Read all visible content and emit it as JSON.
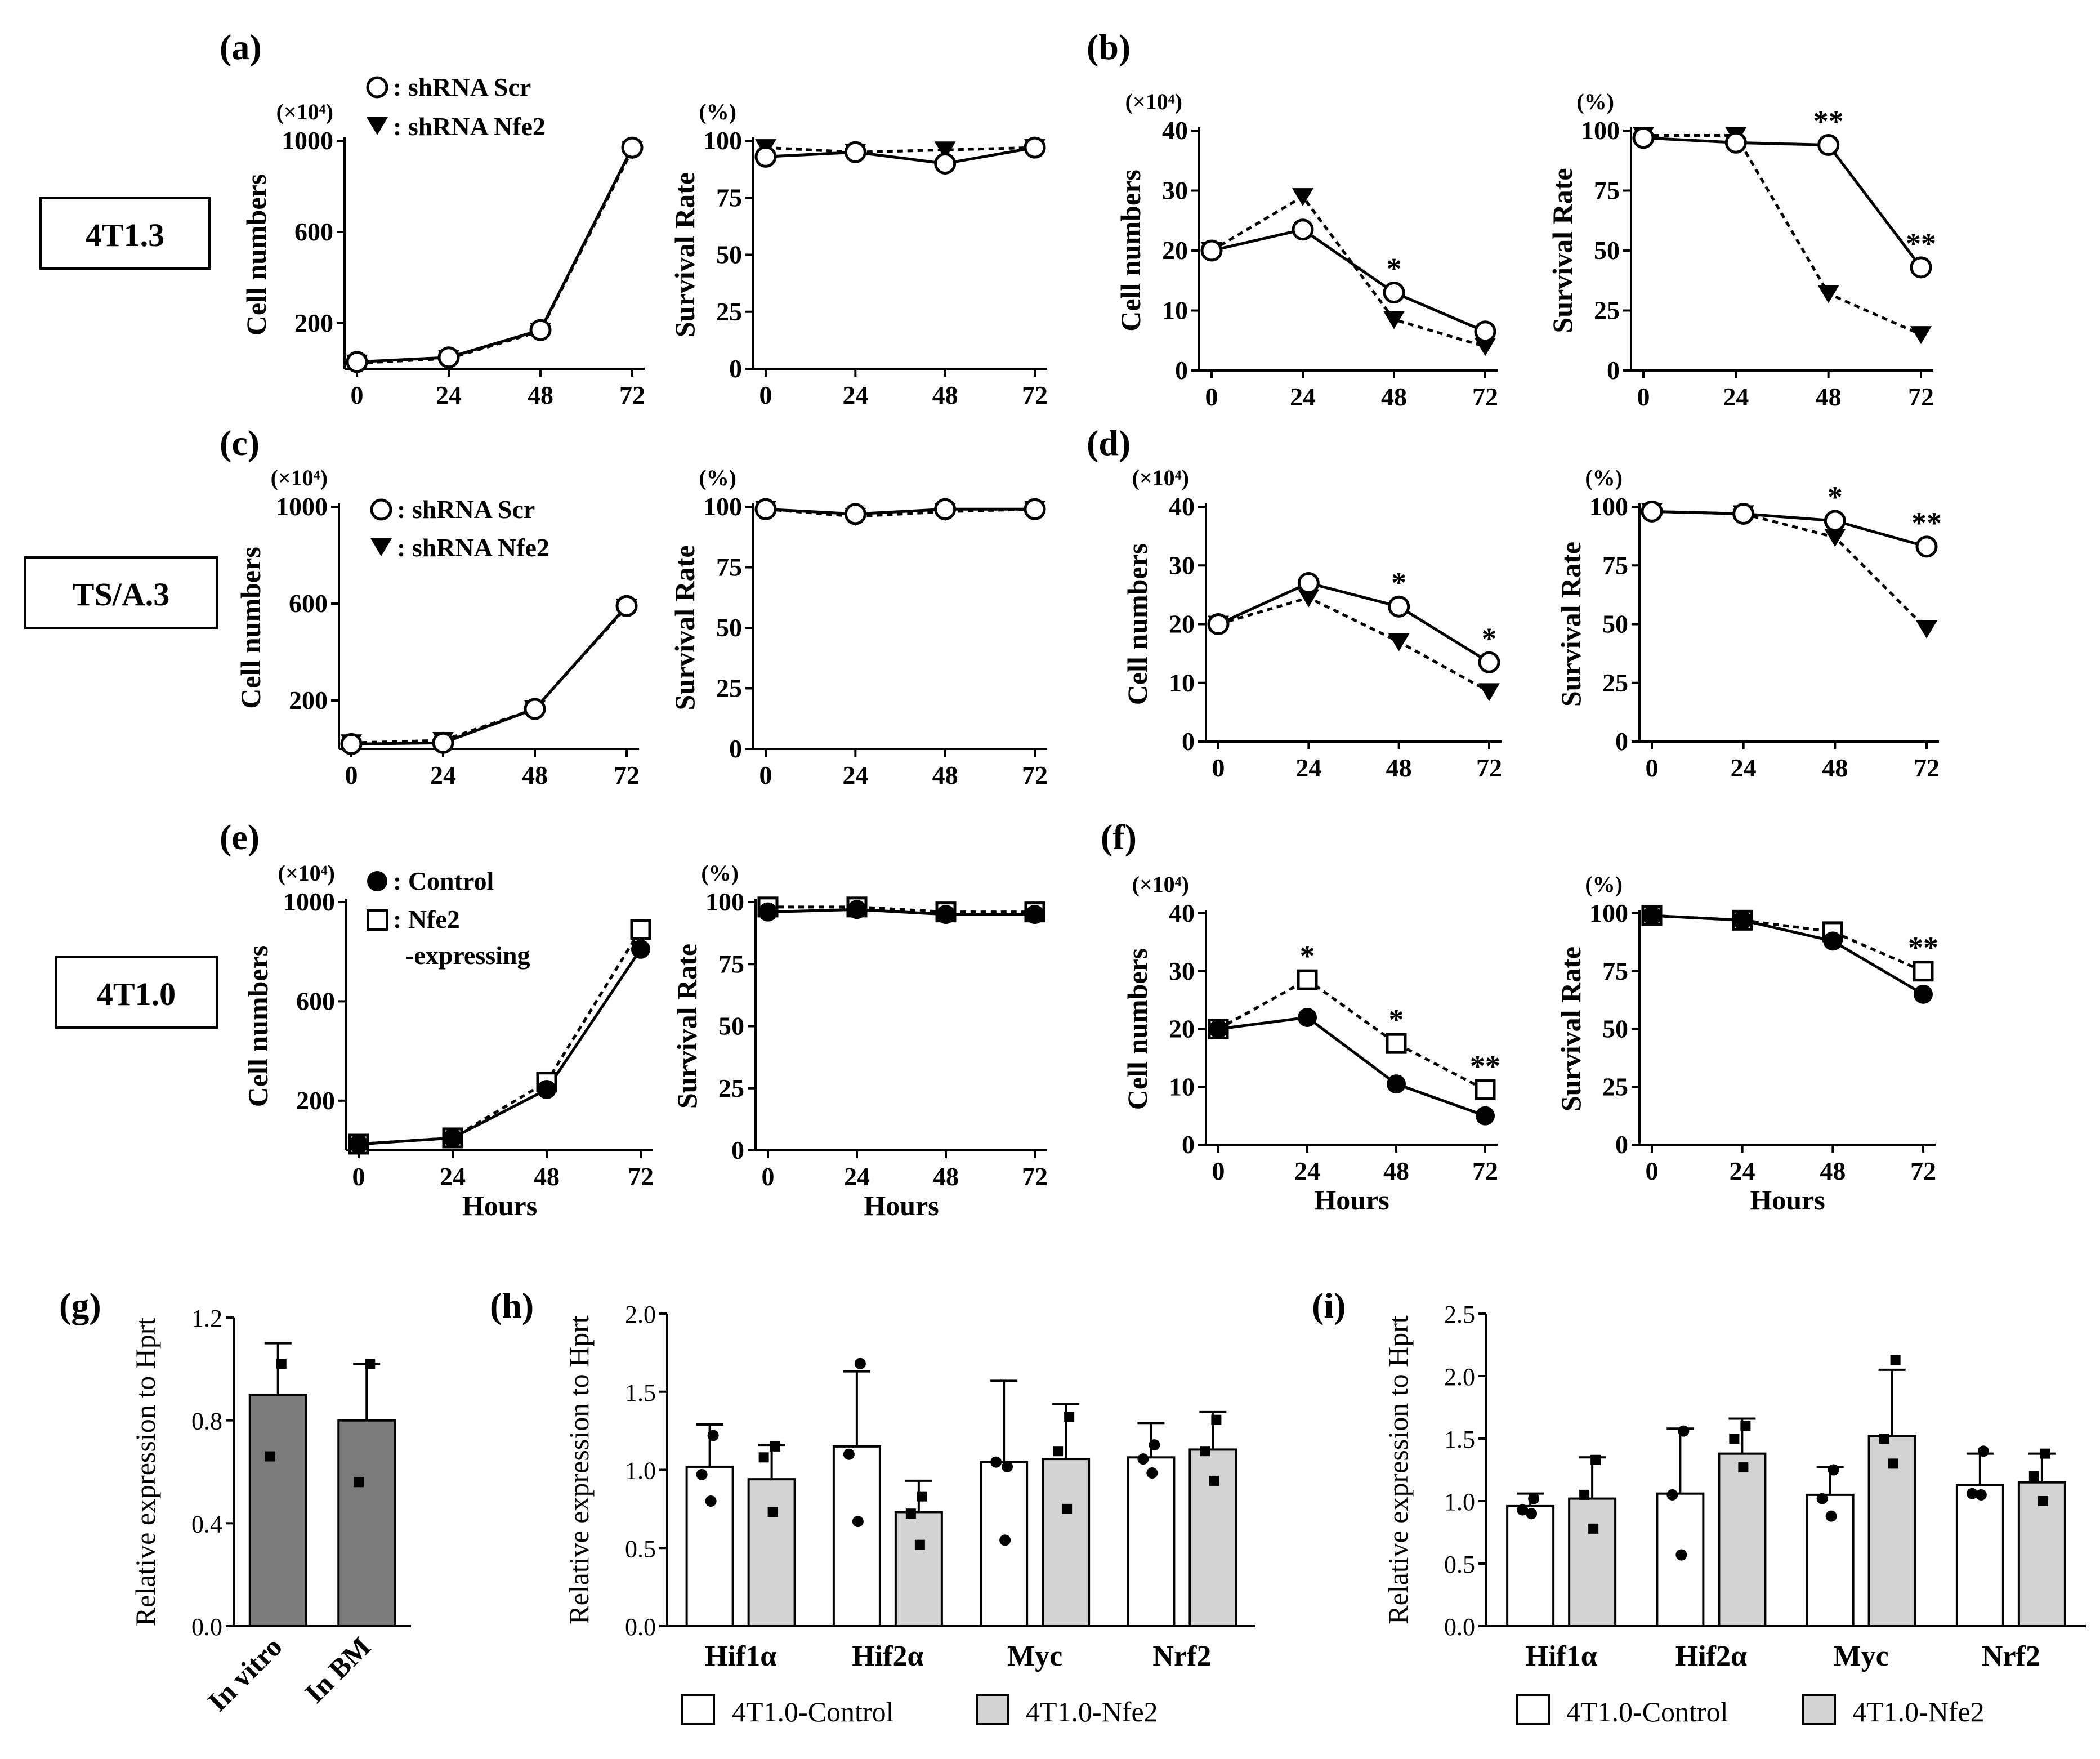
{
  "figure": {
    "panel_letters": [
      "(a)",
      "(b)",
      "(c)",
      "(d)",
      "(e)",
      "(f)",
      "(g)",
      "(h)",
      "(i)"
    ],
    "row_labels": [
      "4T1.3",
      "TS/A.3",
      "4T1.0"
    ],
    "legend_knockdown": {
      "scr": ": shRNA Scr",
      "nfe2": ": shRNA Nfe2"
    },
    "legend_expression": {
      "control": ": Control",
      "nfe2_line1": ": Nfe2",
      "nfe2_line2": "-expressing"
    },
    "legend_bars": {
      "control": "4T1.0-Control",
      "nfe2": "4T1.0-Nfe2"
    },
    "colors": {
      "bar_control": "#ffffff",
      "bar_nfe2": "#d3d3d3",
      "bar_single": "#7b7b7b",
      "ink": "#000000"
    }
  },
  "chart_data": [
    {
      "panel": "(a)",
      "type": "line",
      "xlabel": "",
      "ylabel": "Cell numbers",
      "unit": "(×10⁴)",
      "xticks": [
        0,
        24,
        48,
        72
      ],
      "yticks": [
        200,
        600,
        1000
      ],
      "ylim": [
        0,
        1000
      ],
      "series": [
        {
          "name": "shRNA Scr",
          "marker": "open-circle",
          "line": "solid",
          "x": [
            0,
            24,
            48,
            72
          ],
          "y": [
            30,
            50,
            170,
            970
          ]
        },
        {
          "name": "shRNA Nfe2",
          "marker": "filled-triangle-down",
          "line": "dotted",
          "x": [
            0,
            24,
            48,
            72
          ],
          "y": [
            25,
            45,
            165,
            960
          ]
        }
      ]
    },
    {
      "panel": "(a)",
      "type": "line",
      "xlabel": "",
      "ylabel": "Survival Rate",
      "unit": "(%)",
      "xticks": [
        0,
        24,
        48,
        72
      ],
      "yticks": [
        0,
        25,
        50,
        75,
        100
      ],
      "ylim": [
        0,
        100
      ],
      "series": [
        {
          "name": "shRNA Scr",
          "marker": "open-circle",
          "line": "solid",
          "x": [
            0,
            24,
            48,
            72
          ],
          "y": [
            93,
            95,
            90,
            97
          ]
        },
        {
          "name": "shRNA Nfe2",
          "marker": "filled-triangle-down",
          "line": "dotted",
          "x": [
            0,
            24,
            48,
            72
          ],
          "y": [
            97,
            95,
            96,
            97
          ]
        }
      ]
    },
    {
      "panel": "(b)",
      "type": "line",
      "xlabel": "",
      "ylabel": "Cell numbers",
      "unit": "(×10⁴)",
      "xticks": [
        0,
        24,
        48,
        72
      ],
      "yticks": [
        0,
        10,
        20,
        30,
        40
      ],
      "ylim": [
        0,
        40
      ],
      "series": [
        {
          "name": "shRNA Scr",
          "marker": "open-circle",
          "line": "solid",
          "x": [
            0,
            24,
            48,
            72
          ],
          "y": [
            20,
            23.5,
            13,
            6.5
          ]
        },
        {
          "name": "shRNA Nfe2",
          "marker": "filled-triangle-down",
          "line": "dotted",
          "x": [
            0,
            24,
            48,
            72
          ],
          "y": [
            20,
            29,
            8.5,
            4
          ]
        }
      ],
      "annotations": [
        {
          "x": 48,
          "y": 13,
          "text": "*"
        }
      ]
    },
    {
      "panel": "(b)",
      "type": "line",
      "xlabel": "",
      "ylabel": "Survival Rate",
      "unit": "(%)",
      "xticks": [
        0,
        24,
        48,
        72
      ],
      "yticks": [
        0,
        25,
        50,
        75,
        100
      ],
      "ylim": [
        0,
        100
      ],
      "series": [
        {
          "name": "shRNA Scr",
          "marker": "open-circle",
          "line": "solid",
          "x": [
            0,
            24,
            48,
            72
          ],
          "y": [
            97,
            95,
            94,
            43
          ]
        },
        {
          "name": "shRNA Nfe2",
          "marker": "filled-triangle-down",
          "line": "dotted",
          "x": [
            0,
            24,
            48,
            72
          ],
          "y": [
            98,
            98,
            32,
            15
          ]
        }
      ],
      "annotations": [
        {
          "x": 48,
          "y": 94,
          "text": "**"
        },
        {
          "x": 72,
          "y": 43,
          "text": "**"
        }
      ]
    },
    {
      "panel": "(c)",
      "type": "line",
      "xlabel": "",
      "ylabel": "Cell numbers",
      "unit": "(×10⁴)",
      "xticks": [
        0,
        24,
        48,
        72
      ],
      "yticks": [
        200,
        600,
        1000
      ],
      "ylim": [
        0,
        1000
      ],
      "series": [
        {
          "name": "shRNA Scr",
          "marker": "open-circle",
          "line": "solid",
          "x": [
            0,
            24,
            48,
            72
          ],
          "y": [
            20,
            25,
            165,
            590
          ]
        },
        {
          "name": "shRNA Nfe2",
          "marker": "filled-triangle-down",
          "line": "dotted",
          "x": [
            0,
            24,
            48,
            72
          ],
          "y": [
            25,
            35,
            165,
            585
          ]
        }
      ]
    },
    {
      "panel": "(c)",
      "type": "line",
      "xlabel": "",
      "ylabel": "Survival Rate",
      "unit": "(%)",
      "xticks": [
        0,
        24,
        48,
        72
      ],
      "yticks": [
        0,
        25,
        50,
        75,
        100
      ],
      "ylim": [
        0,
        100
      ],
      "series": [
        {
          "name": "shRNA Scr",
          "marker": "open-circle",
          "line": "solid",
          "x": [
            0,
            24,
            48,
            72
          ],
          "y": [
            99,
            97,
            99,
            99
          ]
        },
        {
          "name": "shRNA Nfe2",
          "marker": "filled-triangle-down",
          "line": "dotted",
          "x": [
            0,
            24,
            48,
            72
          ],
          "y": [
            99,
            96,
            98,
            99
          ]
        }
      ]
    },
    {
      "panel": "(d)",
      "type": "line",
      "xlabel": "",
      "ylabel": "Cell numbers",
      "unit": "(×10⁴)",
      "xticks": [
        0,
        24,
        48,
        72
      ],
      "yticks": [
        0,
        10,
        20,
        30,
        40
      ],
      "ylim": [
        0,
        40
      ],
      "series": [
        {
          "name": "shRNA Scr",
          "marker": "open-circle",
          "line": "solid",
          "x": [
            0,
            24,
            48,
            72
          ],
          "y": [
            20,
            27,
            23,
            13.5
          ]
        },
        {
          "name": "shRNA Nfe2",
          "marker": "filled-triangle-down",
          "line": "dotted",
          "x": [
            0,
            24,
            48,
            72
          ],
          "y": [
            20,
            24.5,
            17,
            8.5
          ]
        }
      ],
      "annotations": [
        {
          "x": 48,
          "y": 23,
          "text": "*"
        },
        {
          "x": 72,
          "y": 13.5,
          "text": "*"
        }
      ]
    },
    {
      "panel": "(d)",
      "type": "line",
      "xlabel": "",
      "ylabel": "Survival Rate",
      "unit": "(%)",
      "xticks": [
        0,
        24,
        48,
        72
      ],
      "yticks": [
        0,
        25,
        50,
        75,
        100
      ],
      "ylim": [
        0,
        100
      ],
      "series": [
        {
          "name": "shRNA Scr",
          "marker": "open-circle",
          "line": "solid",
          "x": [
            0,
            24,
            48,
            72
          ],
          "y": [
            98,
            97,
            94,
            83
          ]
        },
        {
          "name": "shRNA Nfe2",
          "marker": "filled-triangle-down",
          "line": "dotted",
          "x": [
            0,
            24,
            48,
            72
          ],
          "y": [
            98,
            97,
            87,
            48
          ]
        }
      ],
      "annotations": [
        {
          "x": 48,
          "y": 94,
          "text": "*"
        },
        {
          "x": 72,
          "y": 83,
          "text": "**"
        }
      ]
    },
    {
      "panel": "(e)",
      "type": "line",
      "xlabel": "Hours",
      "ylabel": "Cell numbers",
      "unit": "(×10⁴)",
      "xticks": [
        0,
        24,
        48,
        72
      ],
      "yticks": [
        200,
        600,
        1000
      ],
      "ylim": [
        0,
        1000
      ],
      "series": [
        {
          "name": "Control",
          "marker": "filled-circle",
          "line": "solid",
          "x": [
            0,
            24,
            48,
            72
          ],
          "y": [
            25,
            50,
            245,
            810
          ]
        },
        {
          "name": "Nfe2-expressing",
          "marker": "open-square",
          "line": "dotted",
          "x": [
            0,
            24,
            48,
            72
          ],
          "y": [
            25,
            50,
            275,
            890
          ]
        }
      ]
    },
    {
      "panel": "(e)",
      "type": "line",
      "xlabel": "Hours",
      "ylabel": "Survival Rate",
      "unit": "(%)",
      "xticks": [
        0,
        24,
        48,
        72
      ],
      "yticks": [
        0,
        25,
        50,
        75,
        100
      ],
      "ylim": [
        0,
        100
      ],
      "series": [
        {
          "name": "Control",
          "marker": "filled-circle",
          "line": "solid",
          "x": [
            0,
            24,
            48,
            72
          ],
          "y": [
            96,
            97,
            95,
            95
          ]
        },
        {
          "name": "Nfe2-expressing",
          "marker": "open-square",
          "line": "dotted",
          "x": [
            0,
            24,
            48,
            72
          ],
          "y": [
            98,
            98,
            96,
            96
          ]
        }
      ]
    },
    {
      "panel": "(f)",
      "type": "line",
      "xlabel": "Hours",
      "ylabel": "Cell numbers",
      "unit": "(×10⁴)",
      "xticks": [
        0,
        24,
        48,
        72
      ],
      "yticks": [
        0,
        10,
        20,
        30,
        40
      ],
      "ylim": [
        0,
        40
      ],
      "series": [
        {
          "name": "Control",
          "marker": "filled-circle",
          "line": "solid",
          "x": [
            0,
            24,
            48,
            72
          ],
          "y": [
            20,
            22,
            10.5,
            5
          ]
        },
        {
          "name": "Nfe2-expressing",
          "marker": "open-square",
          "line": "dotted",
          "x": [
            0,
            24,
            48,
            72
          ],
          "y": [
            20,
            28.5,
            17.5,
            9.5
          ]
        }
      ],
      "annotations": [
        {
          "x": 24,
          "y": 28.5,
          "text": "*"
        },
        {
          "x": 48,
          "y": 17.5,
          "text": "*"
        },
        {
          "x": 72,
          "y": 9.5,
          "text": "**"
        }
      ]
    },
    {
      "panel": "(f)",
      "type": "line",
      "xlabel": "Hours",
      "ylabel": "Survival Rate",
      "unit": "(%)",
      "xticks": [
        0,
        24,
        48,
        72
      ],
      "yticks": [
        0,
        25,
        50,
        75,
        100
      ],
      "ylim": [
        0,
        100
      ],
      "series": [
        {
          "name": "Control",
          "marker": "filled-circle",
          "line": "solid",
          "x": [
            0,
            24,
            48,
            72
          ],
          "y": [
            99,
            97,
            88,
            65
          ]
        },
        {
          "name": "Nfe2-expressing",
          "marker": "open-square",
          "line": "dotted",
          "x": [
            0,
            24,
            48,
            72
          ],
          "y": [
            99,
            97,
            92,
            75
          ]
        }
      ],
      "annotations": [
        {
          "x": 72,
          "y": 75,
          "text": "**"
        }
      ]
    },
    {
      "panel": "(g)",
      "type": "bar",
      "ylabel": "Relative expression to Hprt",
      "categories": [
        "In vitro",
        "In BM"
      ],
      "ylim": [
        0,
        1.2
      ],
      "yticks": [
        0.0,
        0.4,
        0.8,
        1.2
      ],
      "values": [
        0.9,
        0.8
      ],
      "error": [
        0.2,
        0.22
      ],
      "points": [
        [
          1.02,
          0.66
        ],
        [
          1.02,
          0.56
        ]
      ]
    },
    {
      "panel": "(h)",
      "type": "bar",
      "ylabel": "Relative expression to Hprt",
      "categories": [
        "Hif1α",
        "Hif2α",
        "Myc",
        "Nrf2"
      ],
      "ylim": [
        0,
        2.0
      ],
      "yticks": [
        0.0,
        0.5,
        1.0,
        1.5,
        2.0
      ],
      "series": [
        {
          "name": "4T1.0-Control",
          "values": [
            1.02,
            1.15,
            1.05,
            1.08
          ],
          "error": [
            0.27,
            0.48,
            0.52,
            0.22
          ],
          "points": [
            [
              1.22,
              0.97,
              0.8
            ],
            [
              1.68,
              1.1,
              0.67
            ],
            [
              1.02,
              1.05,
              0.55
            ],
            [
              1.16,
              1.07,
              0.98
            ]
          ]
        },
        {
          "name": "4T1.0-Nfe2",
          "values": [
            0.94,
            0.73,
            1.07,
            1.13
          ],
          "error": [
            0.22,
            0.2,
            0.35,
            0.24
          ],
          "points": [
            [
              1.15,
              1.08,
              0.73
            ],
            [
              0.83,
              0.72,
              0.52
            ],
            [
              1.34,
              1.12,
              0.75
            ],
            [
              1.32,
              1.12,
              0.93
            ]
          ]
        }
      ]
    },
    {
      "panel": "(i)",
      "type": "bar",
      "ylabel": "Relative expression to Hprt",
      "categories": [
        "Hif1α",
        "Hif2α",
        "Myc",
        "Nrf2"
      ],
      "ylim": [
        0,
        2.5
      ],
      "yticks": [
        0.0,
        0.5,
        1.0,
        1.5,
        2.0,
        2.5
      ],
      "series": [
        {
          "name": "4T1.0-Control",
          "values": [
            0.96,
            1.06,
            1.05,
            1.13
          ],
          "error": [
            0.1,
            0.52,
            0.22,
            0.25
          ],
          "points": [
            [
              1.02,
              0.93,
              0.9
            ],
            [
              1.56,
              1.05,
              0.57
            ],
            [
              1.25,
              1.02,
              0.88
            ],
            [
              1.4,
              1.06,
              1.05
            ]
          ]
        },
        {
          "name": "4T1.0-Nfe2",
          "values": [
            1.02,
            1.38,
            1.52,
            1.15
          ],
          "error": [
            0.33,
            0.28,
            0.53,
            0.23
          ],
          "points": [
            [
              1.33,
              1.05,
              0.78
            ],
            [
              1.6,
              1.5,
              1.27
            ],
            [
              2.13,
              1.5,
              1.3
            ],
            [
              1.38,
              1.2,
              1.0
            ]
          ]
        }
      ]
    }
  ]
}
